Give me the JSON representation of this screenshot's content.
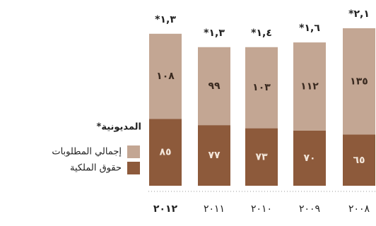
{
  "chart_data": {
    "type": "bar",
    "stacked": true,
    "categories": [
      "٢٠١٢",
      "٢٠١١",
      "٢٠١٠",
      "٢٠٠٩",
      "٢٠٠٨"
    ],
    "series": [
      {
        "name": "حقوق الملكية",
        "color": "#8d5a3b",
        "values": [
          85,
          77,
          73,
          70,
          65
        ],
        "value_labels": [
          "٨٥",
          "٧٧",
          "٧٣",
          "٧٠",
          "٦٥"
        ]
      },
      {
        "name": "إجمالي المطلوبات",
        "color": "#c3a693",
        "values": [
          108,
          99,
          103,
          112,
          135
        ],
        "value_labels": [
          "١٠٨",
          "٩٩",
          "١٠٣",
          "١١٢",
          "١٣٥"
        ]
      }
    ],
    "debt_ratio": {
      "name": "*المديونية",
      "values": [
        1.3,
        1.3,
        1.4,
        1.6,
        2.1
      ],
      "value_labels": [
        "*١,٣",
        "*١,٣",
        "*١,٤",
        "*١,٦",
        "*٢,١"
      ]
    }
  }
}
